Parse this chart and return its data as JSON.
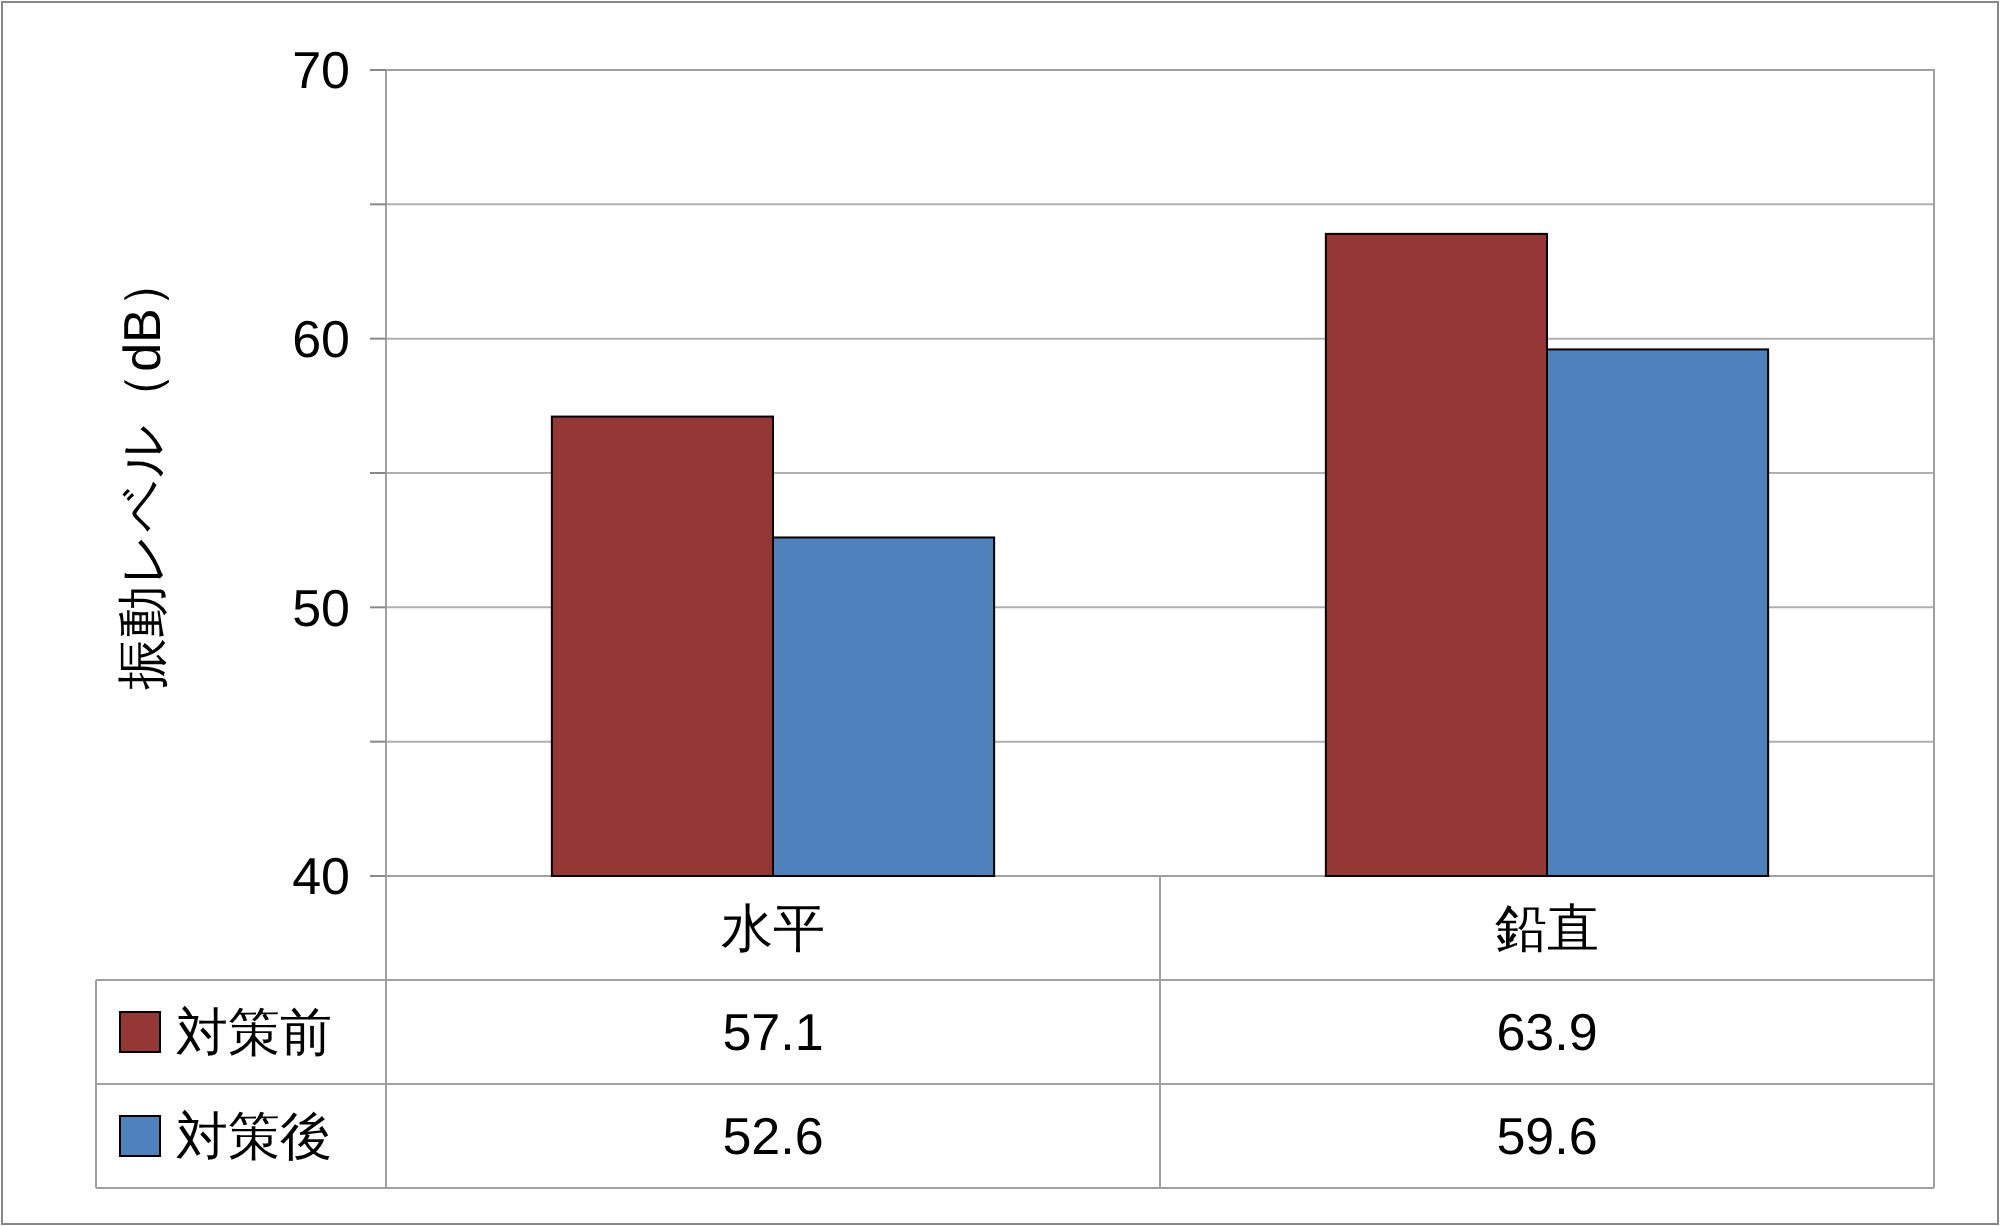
{
  "chart_data": {
    "type": "bar",
    "ylabel": "振動レベル（dB）",
    "categories": [
      "水平",
      "鉛直"
    ],
    "series": [
      {
        "name": "対策前",
        "color": "#953735",
        "values": [
          57.1,
          63.9
        ]
      },
      {
        "name": "対策後",
        "color": "#4f81bd",
        "values": [
          52.6,
          59.6
        ]
      }
    ],
    "ylim": [
      40,
      70
    ],
    "yticks": [
      40,
      {
        "value": 45,
        "label": null
      },
      50,
      {
        "value": 55,
        "label": null
      },
      60,
      {
        "value": 65,
        "label": null
      },
      70
    ],
    "grid": "y",
    "data_labels": true,
    "legend": "bottom left"
  }
}
